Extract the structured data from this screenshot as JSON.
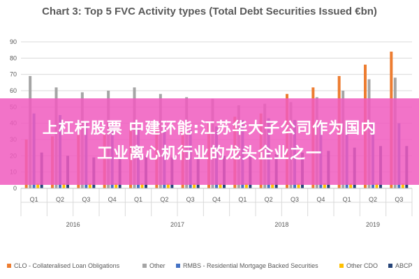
{
  "chart_data": {
    "type": "bar",
    "title": "Chart 3: Top 5 FVC Activity types (Total Debt Securities Issued €bn)",
    "ylim": [
      0,
      90
    ],
    "yticks": [
      "0",
      "10",
      "20",
      "30",
      "40",
      "50",
      "60",
      "70",
      "80",
      "90"
    ],
    "categories": [
      "Q1",
      "Q2",
      "Q3",
      "Q4",
      "Q1",
      "Q2",
      "Q3",
      "Q4",
      "Q1",
      "Q2",
      "Q3",
      "Q4",
      "Q1",
      "Q2",
      "Q3"
    ],
    "groups": [
      {
        "label": "2016",
        "count": 4
      },
      {
        "label": "2017",
        "count": 4
      },
      {
        "label": "2018",
        "count": 4
      },
      {
        "label": "2019",
        "count": 3
      }
    ],
    "grid": true,
    "legend_position": "bottom",
    "series": [
      {
        "name": "CLO - Collateralised Loan Obligations",
        "color": "#ED7D31",
        "values": [
          30,
          32,
          33,
          34,
          36,
          37,
          38,
          40,
          44,
          46,
          58,
          62,
          69,
          76,
          84
        ]
      },
      {
        "name": "Other",
        "color": "#A5A5A5",
        "values": [
          69,
          62,
          59,
          60,
          62,
          58,
          56,
          55,
          51,
          52,
          53,
          56,
          60,
          67,
          68
        ]
      },
      {
        "name": "RMBS - Residential Mortgage Backed Securities",
        "color": "#4472C4",
        "values": [
          46,
          45,
          40,
          39,
          38,
          37,
          37,
          38,
          42,
          43,
          42,
          41,
          40,
          40,
          40
        ]
      },
      {
        "name": "Other CDO",
        "color": "#FFC000",
        "values": [
          3,
          3,
          3,
          3,
          3,
          3,
          3,
          3,
          3,
          3,
          3,
          3,
          3,
          3,
          3
        ]
      },
      {
        "name": "ABCP",
        "color": "#264478",
        "values": [
          22,
          20,
          19,
          18,
          20,
          19,
          19,
          20,
          20,
          21,
          22,
          23,
          25,
          26,
          26
        ]
      }
    ]
  },
  "banner": {
    "line1": "上杠杆股票 中建环能:江苏华大子公司作为国内",
    "line2": "工业离心机行业的龙头企业之一"
  }
}
